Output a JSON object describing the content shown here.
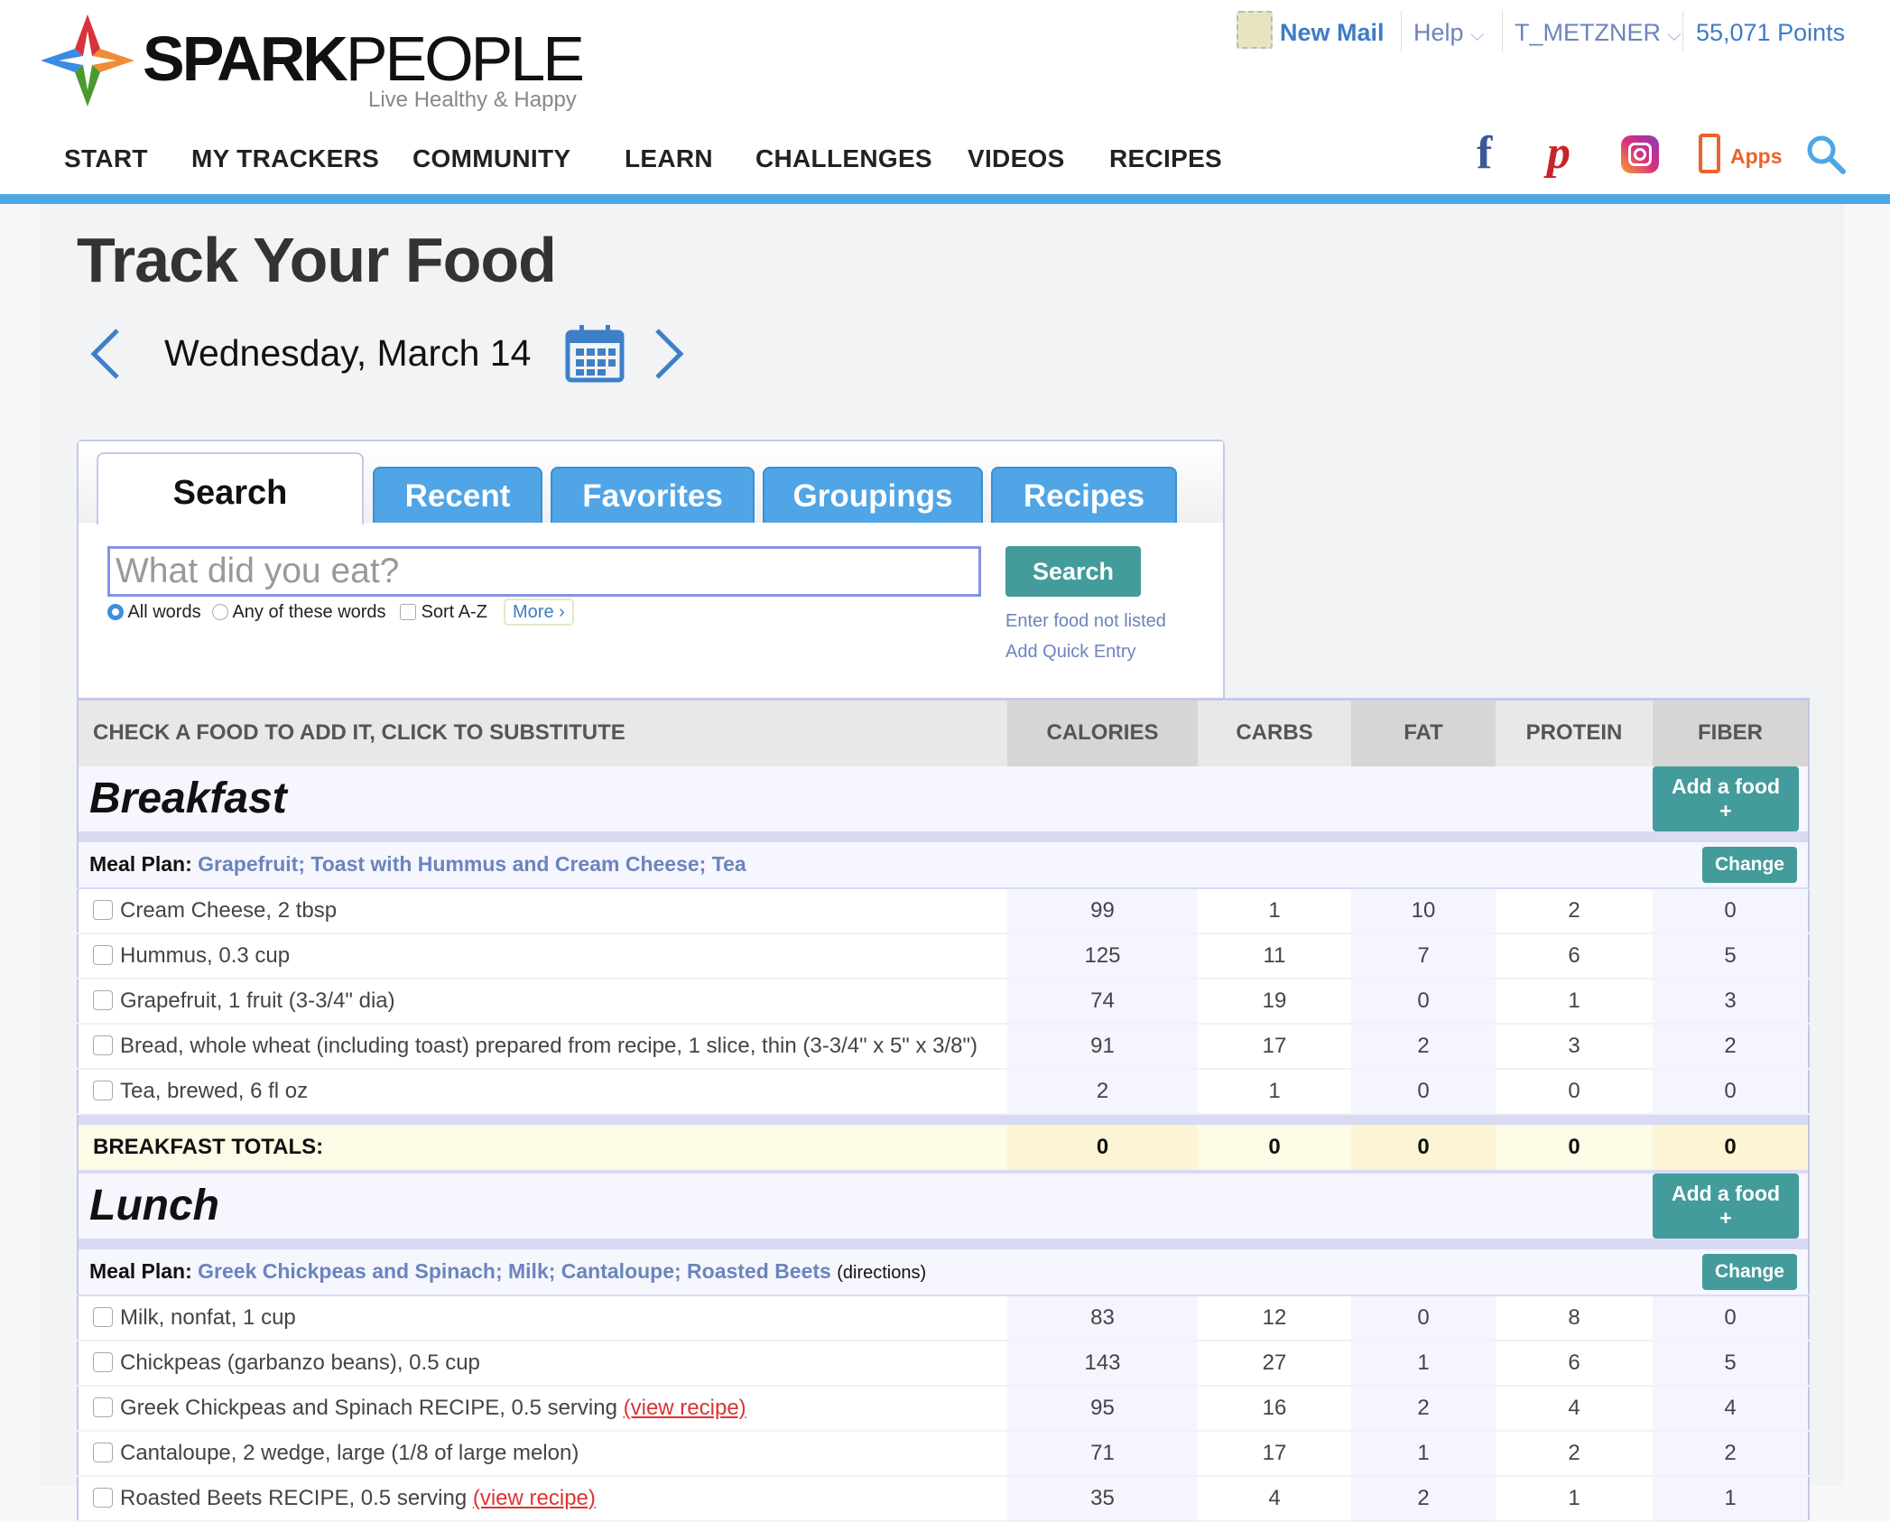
{
  "brand": {
    "name_bold": "SPARK",
    "name_light": "PEOPLE",
    "tagline": "Live Healthy & Happy"
  },
  "topbar": {
    "mail": "New Mail",
    "help": "Help",
    "user": "T_METZNER",
    "points": "55,071 Points"
  },
  "nav": [
    "START",
    "MY TRACKERS",
    "COMMUNITY",
    "LEARN",
    "CHALLENGES",
    "VIDEOS",
    "RECIPES"
  ],
  "social": {
    "apps": "Apps",
    "icons": [
      "facebook-icon",
      "pinterest-icon",
      "instagram-icon",
      "phone-icon",
      "search-icon"
    ]
  },
  "page": {
    "title": "Track Your Food",
    "date": "Wednesday, March 14"
  },
  "search_panel": {
    "tabs": [
      "Search",
      "Recent",
      "Favorites",
      "Groupings",
      "Recipes"
    ],
    "active_tab": "Search",
    "placeholder": "What did you eat?",
    "search_button": "Search",
    "options": {
      "all_words": "All words",
      "any_words": "Any of these words",
      "sort": "Sort A-Z",
      "more": "More ›"
    },
    "links": {
      "enter_food": "Enter food not listed",
      "quick_entry": "Add Quick Entry"
    }
  },
  "table": {
    "headers": [
      "CHECK A FOOD TO ADD IT, CLICK TO SUBSTITUTE",
      "CALORIES",
      "CARBS",
      "FAT",
      "PROTEIN",
      "FIBER"
    ],
    "add_food": "Add a food +",
    "change": "Change",
    "meal_plan_label": "Meal Plan:",
    "meals": [
      {
        "name": "Breakfast",
        "plan": "Grapefruit; Toast with Hummus and Cream Cheese; Tea",
        "plan_note": "",
        "foods": [
          {
            "name": "Cream Cheese, 2 tbsp",
            "link": "",
            "values": [
              99,
              1,
              10,
              2,
              0
            ]
          },
          {
            "name": "Hummus, 0.3 cup",
            "link": "",
            "values": [
              125,
              11,
              7,
              6,
              5
            ]
          },
          {
            "name": "Grapefruit, 1 fruit (3-3/4\" dia)",
            "link": "",
            "values": [
              74,
              19,
              0,
              1,
              3
            ]
          },
          {
            "name": "Bread, whole wheat (including toast) prepared from recipe, 1 slice, thin (3-3/4\" x 5\" x 3/8\")",
            "link": "",
            "values": [
              91,
              17,
              2,
              3,
              2
            ]
          },
          {
            "name": "Tea, brewed, 6 fl oz",
            "link": "",
            "values": [
              2,
              1,
              0,
              0,
              0
            ]
          }
        ],
        "totals_label": "BREAKFAST TOTALS:",
        "totals": [
          0,
          0,
          0,
          0,
          0
        ]
      },
      {
        "name": "Lunch",
        "plan": "Greek Chickpeas and Spinach; Milk; Cantaloupe; Roasted Beets",
        "plan_note": "(directions)",
        "foods": [
          {
            "name": "Milk, nonfat, 1 cup",
            "link": "",
            "values": [
              83,
              12,
              0,
              8,
              0
            ]
          },
          {
            "name": "Chickpeas (garbanzo beans), 0.5 cup",
            "link": "",
            "values": [
              143,
              27,
              1,
              6,
              5
            ]
          },
          {
            "name": "Greek Chickpeas and Spinach RECIPE, 0.5 serving",
            "link": "(view recipe)",
            "values": [
              95,
              16,
              2,
              4,
              4
            ]
          },
          {
            "name": "Cantaloupe, 2 wedge, large (1/8 of large melon)",
            "link": "",
            "values": [
              71,
              17,
              1,
              2,
              2
            ]
          },
          {
            "name": "Roasted Beets RECIPE, 0.5 serving",
            "link": "(view recipe)",
            "values": [
              35,
              4,
              2,
              1,
              1
            ]
          }
        ]
      }
    ]
  },
  "colors": {
    "accent_blue": "#4ea6e5",
    "teal": "#449b9b",
    "link": "#6b84bd"
  }
}
